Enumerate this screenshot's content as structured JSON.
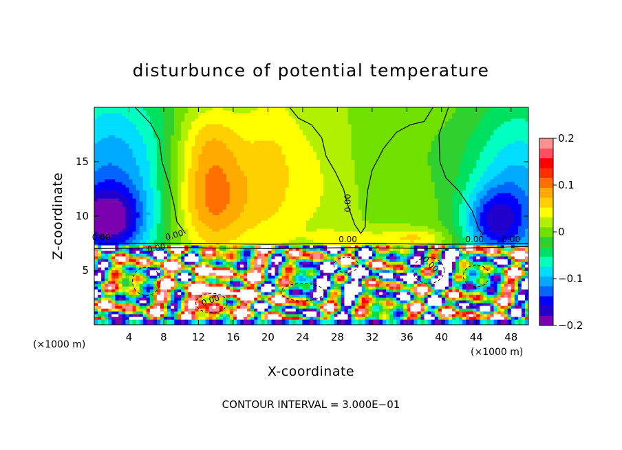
{
  "chart_data": {
    "type": "heatmap",
    "title": "disturbunce of potential temperature",
    "xlabel": "X-coordinate",
    "ylabel": "Z-coordinate",
    "x_unit": "(×1000 m)",
    "y_unit": "(×1000 m)",
    "xlim": [
      0,
      50
    ],
    "ylim": [
      0,
      20
    ],
    "x_ticks": [
      4,
      8,
      12,
      16,
      20,
      24,
      28,
      32,
      36,
      40,
      44,
      48
    ],
    "y_ticks": [
      5,
      10,
      15
    ],
    "colorbar": {
      "range": [
        -0.2,
        0.2
      ],
      "tick_values": [
        -0.2,
        -0.1,
        0,
        0.1,
        0.2
      ],
      "tick_labels": [
        "−0.2",
        "−0.1",
        "0",
        "0.1",
        "0.2"
      ],
      "colors": [
        "#7a00b0",
        "#2200cc",
        "#0000ff",
        "#0066ff",
        "#00aaff",
        "#00ddff",
        "#00ffc0",
        "#00e060",
        "#30d030",
        "#70e000",
        "#b0f000",
        "#ffff00",
        "#ffd000",
        "#ffaa00",
        "#ff7000",
        "#ff3000",
        "#ff0000",
        "#ff5060",
        "#ff9090"
      ]
    },
    "contour_interval_text": "CONTOUR INTERVAL = 3.000E−01",
    "contour_labels": [
      "0.00",
      "0.00",
      "0.00",
      "0.00",
      "0.00",
      "0.00",
      "0.00",
      "0.00",
      "0.00"
    ]
  }
}
